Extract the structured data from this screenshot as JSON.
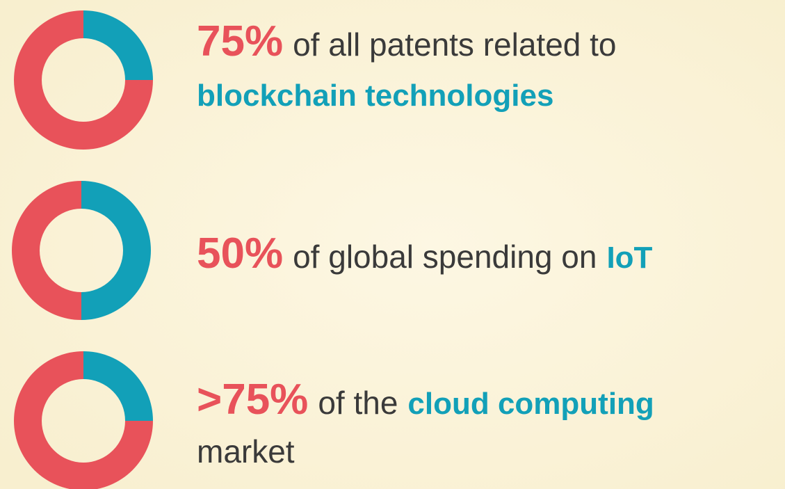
{
  "chart_data": [
    {
      "type": "donut",
      "values": [
        75,
        25
      ],
      "value_labels": [
        "75%",
        null
      ],
      "colors": [
        "#e8525a",
        "#12a0b8"
      ],
      "caption_lines": [
        [
          {
            "text": "of all patents related to",
            "highlight": false
          }
        ],
        [
          {
            "text": "blockchain technologies",
            "highlight": true
          }
        ]
      ]
    },
    {
      "type": "donut",
      "values": [
        50,
        50
      ],
      "value_labels": [
        "50%",
        null
      ],
      "colors": [
        "#e8525a",
        "#12a0b8"
      ],
      "caption_lines": [
        [
          {
            "text": "of global spending on",
            "highlight": false
          },
          {
            "text": "IoT",
            "highlight": true
          }
        ]
      ]
    },
    {
      "type": "donut",
      "values": [
        75,
        25
      ],
      "value_labels": [
        ">75%",
        null
      ],
      "colors": [
        "#e8525a",
        "#12a0b8"
      ],
      "caption_lines": [
        [
          {
            "text": "of the",
            "highlight": false
          },
          {
            "text": "cloud computing",
            "highlight": true
          }
        ],
        [
          {
            "text": "market",
            "highlight": false
          }
        ]
      ]
    }
  ]
}
